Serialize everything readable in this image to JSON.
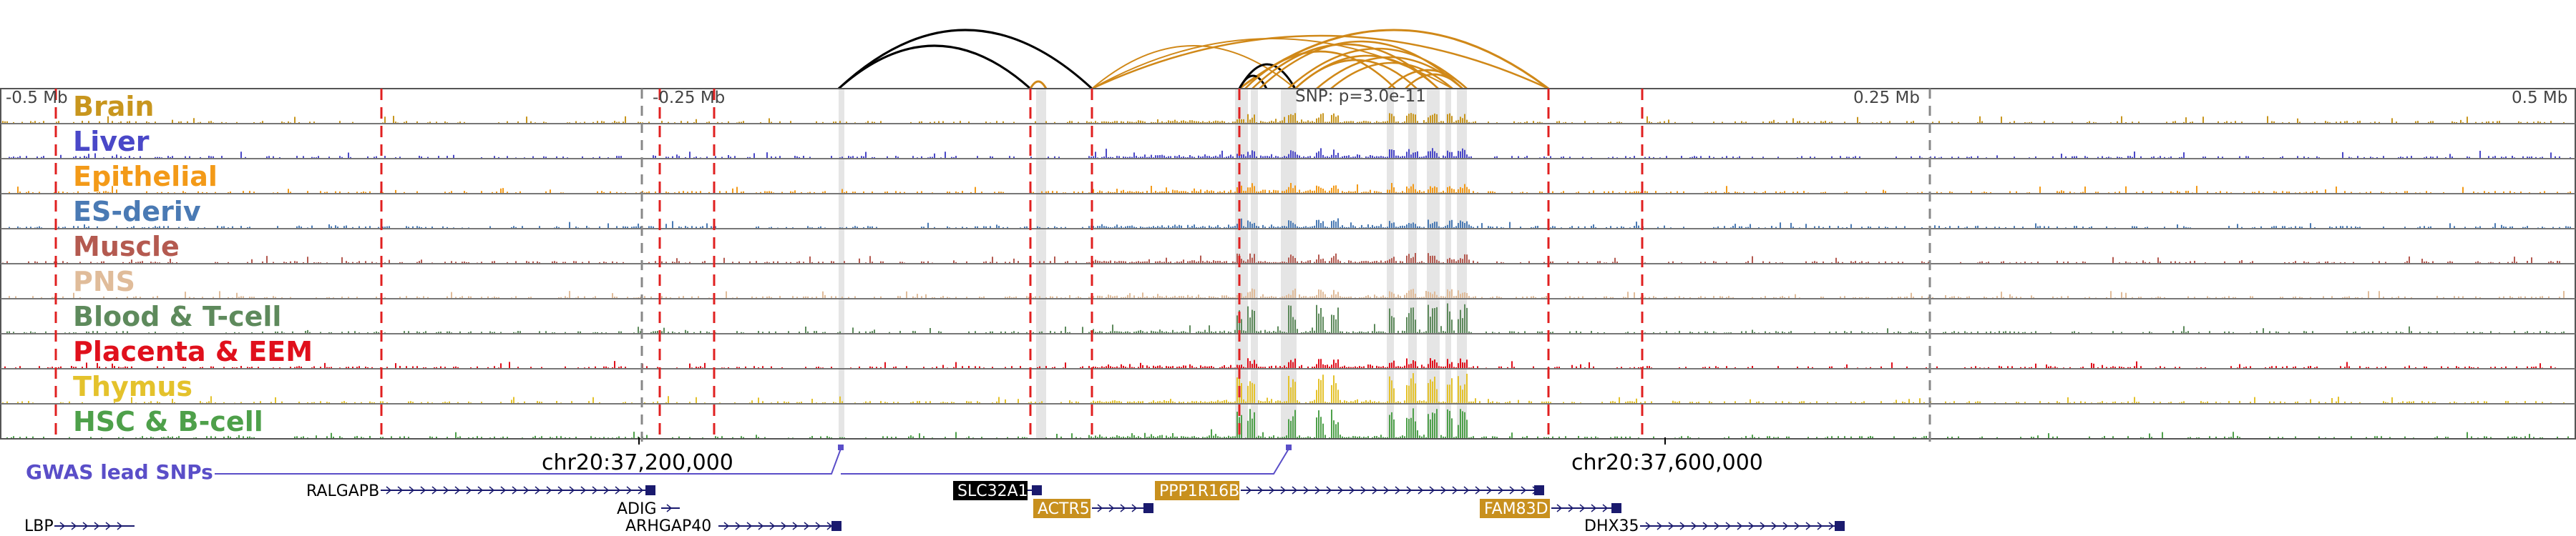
{
  "ruler": {
    "left_label": "-0.5 Mb",
    "mid_left_label": "-0.25 Mb",
    "snp_label": "SNP: p=3.0e-11",
    "mid_right_label": "0.25 Mb",
    "right_label": "0.5 Mb"
  },
  "tracks": [
    {
      "name": "Brain",
      "color": "#c8961e"
    },
    {
      "name": "Liver",
      "color": "#4a48c8"
    },
    {
      "name": "Epithelial",
      "color": "#f39a18"
    },
    {
      "name": "ES-deriv",
      "color": "#4a7ab4"
    },
    {
      "name": "Muscle",
      "color": "#b45a50"
    },
    {
      "name": "PNS",
      "color": "#e0bc9a"
    },
    {
      "name": "Blood & T-cell",
      "color": "#5e8a5c"
    },
    {
      "name": "Placenta & EEM",
      "color": "#e0101c"
    },
    {
      "name": "Thymus",
      "color": "#e4c22c"
    },
    {
      "name": "HSC & B-cell",
      "color": "#4ea04a"
    }
  ],
  "coordinates": {
    "left": "chr20:37,200,000",
    "right": "chr20:37,600,000"
  },
  "gwas_label": "GWAS lead SNPs",
  "genes": [
    {
      "name": "RALGAPB",
      "style": "plain"
    },
    {
      "name": "ADIG",
      "style": "plain"
    },
    {
      "name": "LBP",
      "style": "plain"
    },
    {
      "name": "ARHGAP40",
      "style": "plain"
    },
    {
      "name": "SLC32A1",
      "style": "black"
    },
    {
      "name": "ACTR5",
      "style": "gold"
    },
    {
      "name": "PPP1R16B",
      "style": "gold"
    },
    {
      "name": "FAM83D",
      "style": "gold"
    },
    {
      "name": "DHX35",
      "style": "plain"
    }
  ],
  "colors": {
    "loop_black": "#000000",
    "loop_gold": "#d08818",
    "dashed_red": "#e02020",
    "dashed_gray": "#888888",
    "gwas": "#5a4ec8",
    "gene": "#1a1a6e",
    "highlight": "#dcdcdc"
  }
}
